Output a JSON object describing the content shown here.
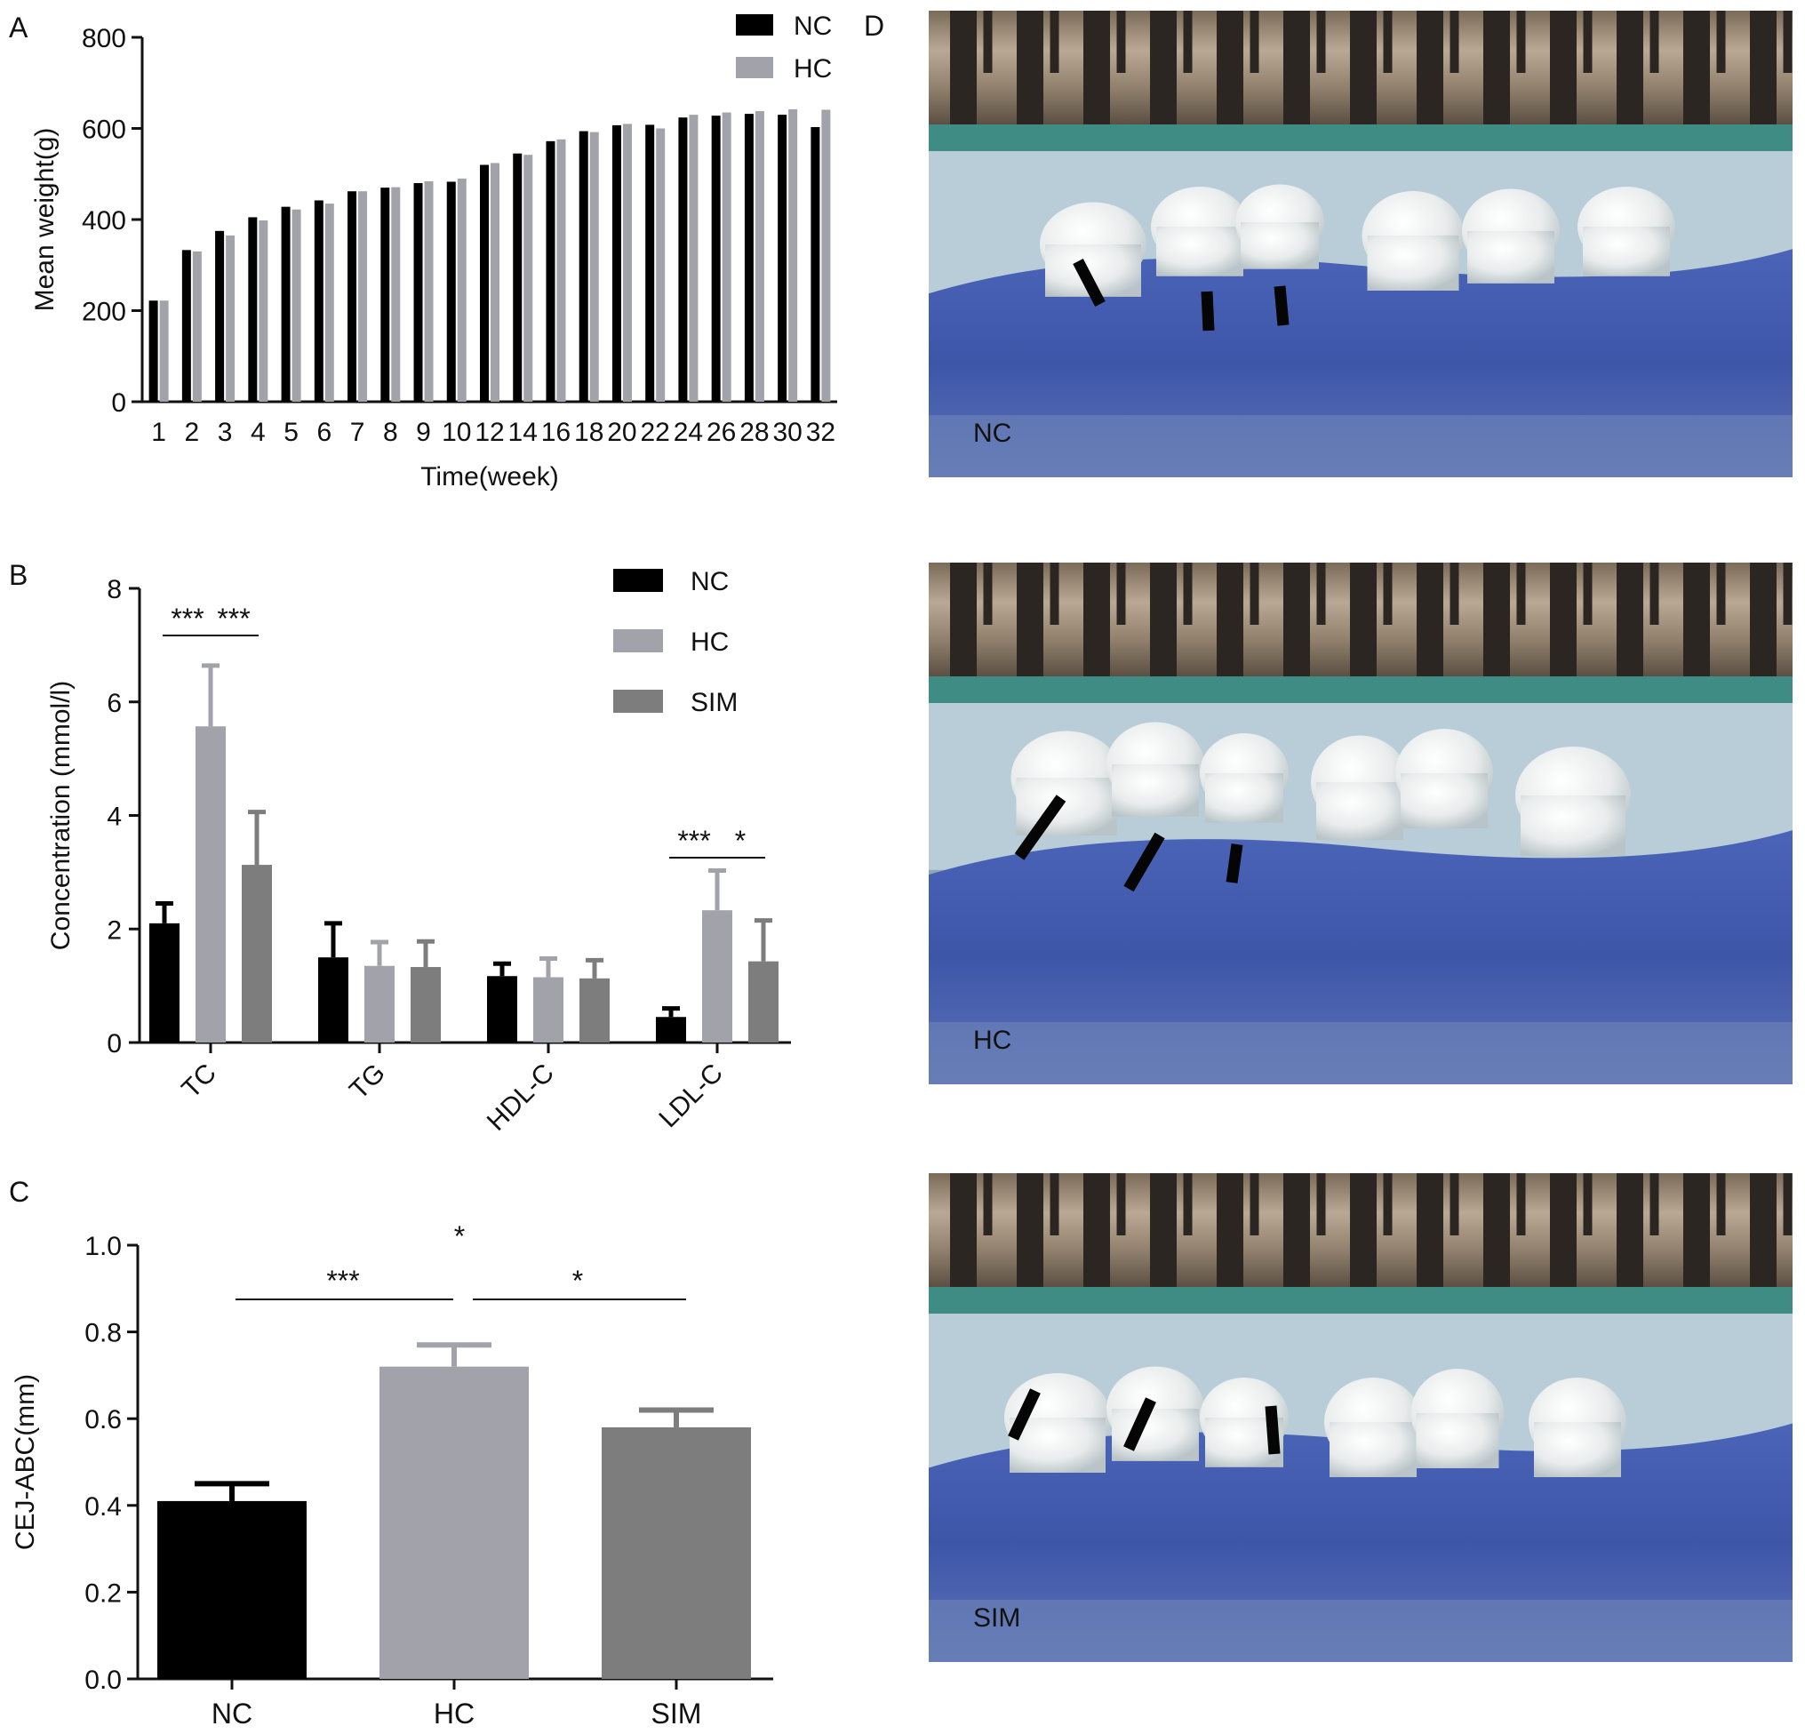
{
  "panel_labels": {
    "a": "A",
    "b": "B",
    "c": "C",
    "d": "D"
  },
  "photo_labels": [
    "NC",
    "HC",
    "SIM"
  ],
  "colors": {
    "NC": "#000000",
    "HC": "#a2a2aa",
    "SIM": "#7d7d7d"
  },
  "chart_data": [
    {
      "panel": "A",
      "type": "bar",
      "xlabel": "Time(week)",
      "ylabel": "Mean weight(g)",
      "ylim": [
        0,
        800
      ],
      "yticks": [
        0,
        200,
        400,
        600,
        800
      ],
      "categories": [
        "1",
        "2",
        "3",
        "4",
        "5",
        "6",
        "7",
        "8",
        "9",
        "10",
        "12",
        "14",
        "16",
        "18",
        "20",
        "22",
        "24",
        "26",
        "28",
        "30",
        "32"
      ],
      "series": [
        {
          "name": "NC",
          "values": [
            222,
            333,
            375,
            405,
            428,
            442,
            462,
            470,
            480,
            483,
            520,
            545,
            572,
            594,
            607,
            608,
            624,
            628,
            632,
            630,
            603
          ]
        },
        {
          "name": "HC",
          "values": [
            222,
            330,
            365,
            398,
            422,
            435,
            462,
            471,
            484,
            490,
            524,
            542,
            576,
            592,
            610,
            600,
            630,
            635,
            638,
            642,
            641
          ]
        }
      ],
      "legend": "top-right"
    },
    {
      "panel": "B",
      "type": "bar",
      "ylabel": "Concentration (mmol/l)",
      "ylim": [
        0,
        8
      ],
      "yticks": [
        0,
        2,
        4,
        6,
        8
      ],
      "categories": [
        "TC",
        "TG",
        "HDL-C",
        "LDL-C"
      ],
      "series": [
        {
          "name": "NC",
          "values": [
            2.1,
            1.5,
            1.17,
            0.45
          ],
          "errors": [
            0.35,
            0.6,
            0.22,
            0.15
          ]
        },
        {
          "name": "HC",
          "values": [
            5.57,
            1.35,
            1.15,
            2.33
          ],
          "errors": [
            1.07,
            0.42,
            0.33,
            0.7
          ]
        },
        {
          "name": "SIM",
          "values": [
            3.13,
            1.33,
            1.13,
            1.43
          ],
          "errors": [
            0.93,
            0.45,
            0.32,
            0.72
          ]
        }
      ],
      "annotations": [
        {
          "category": "TC",
          "from": "NC",
          "to": "HC",
          "label": "***"
        },
        {
          "category": "TC",
          "from": "HC",
          "to": "SIM",
          "label": "***"
        },
        {
          "category": "LDL-C",
          "from": "NC",
          "to": "HC",
          "label": "***"
        },
        {
          "category": "LDL-C",
          "from": "HC",
          "to": "SIM",
          "label": "*"
        }
      ],
      "legend": "top-right"
    },
    {
      "panel": "C",
      "type": "bar",
      "ylabel": "CEJ-ABC(mm)",
      "ylim": [
        0,
        1.0
      ],
      "yticks": [
        "0.0",
        "0.2",
        "0.4",
        "0.6",
        "0.8",
        "1.0"
      ],
      "categories": [
        "NC",
        "HC",
        "SIM"
      ],
      "values": [
        0.41,
        0.72,
        0.58
      ],
      "errors": [
        0.04,
        0.05,
        0.04
      ],
      "annotations": [
        {
          "from": "NC",
          "to": "HC",
          "label": "***"
        },
        {
          "from": "HC",
          "to": "SIM",
          "label": "*"
        },
        {
          "over": "HC",
          "label": "*"
        }
      ]
    }
  ]
}
